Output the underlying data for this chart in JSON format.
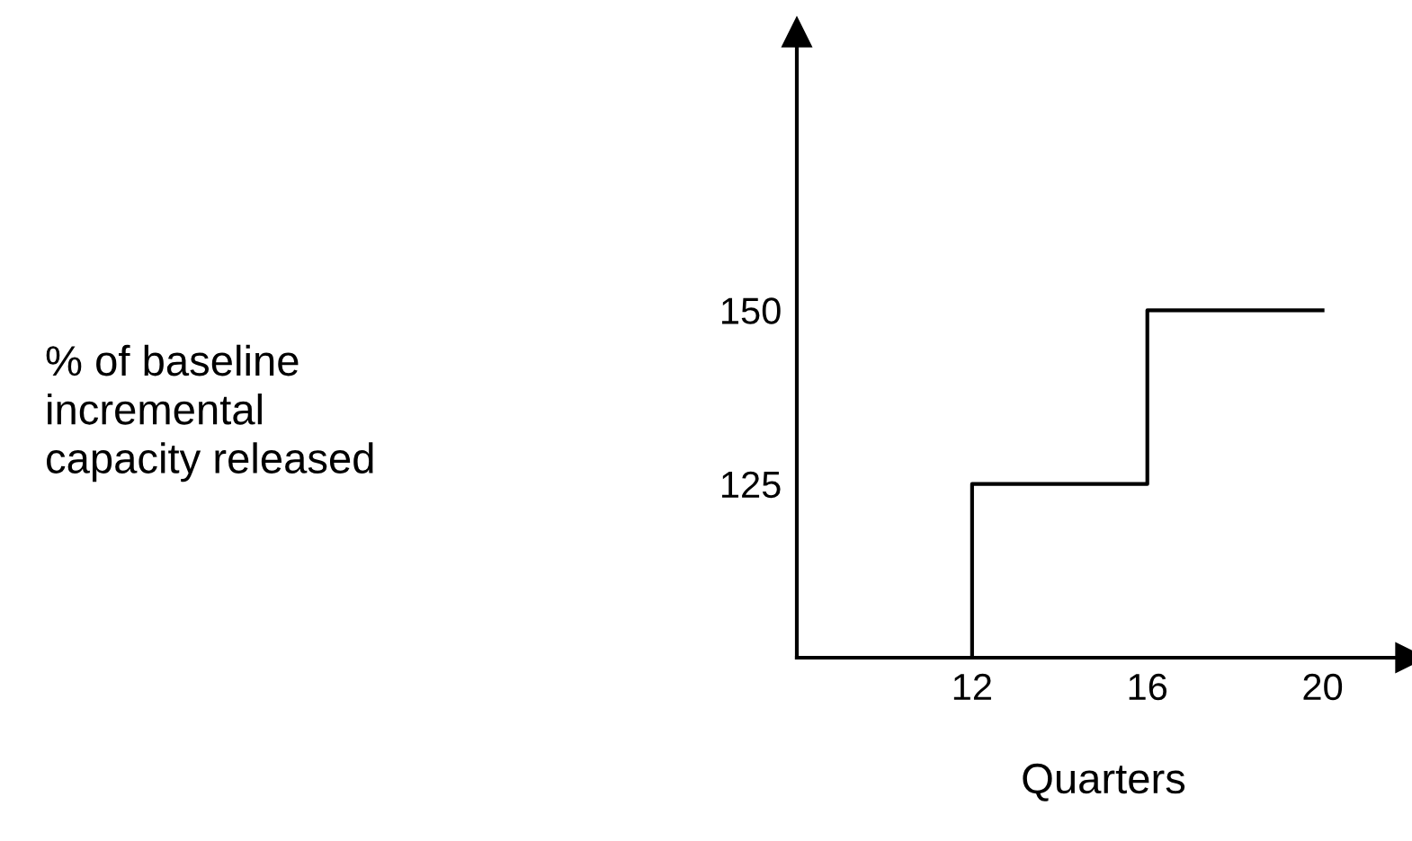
{
  "chart_data": {
    "type": "step",
    "xlabel": "Quarters",
    "annotations": [
      "% of baseline\nincremental\ncapacity released"
    ],
    "x": [
      12,
      12,
      16,
      20
    ],
    "values": [
      100,
      125,
      150,
      150
    ],
    "color": "#000000",
    "xlim": [
      8,
      22
    ],
    "ylim": [
      100,
      190
    ],
    "xticks": [
      12,
      16,
      20
    ],
    "yticks": [
      125,
      150
    ],
    "grid": false
  }
}
